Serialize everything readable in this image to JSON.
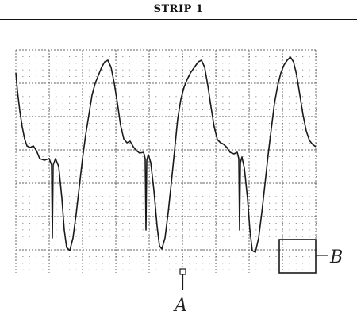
{
  "header": {
    "title": "STRIP 1"
  },
  "markers": {
    "a": {
      "label": "A"
    },
    "b": {
      "label": "B"
    }
  },
  "colors": {
    "ink": "#1a1a1a",
    "grid": "#333333"
  }
}
